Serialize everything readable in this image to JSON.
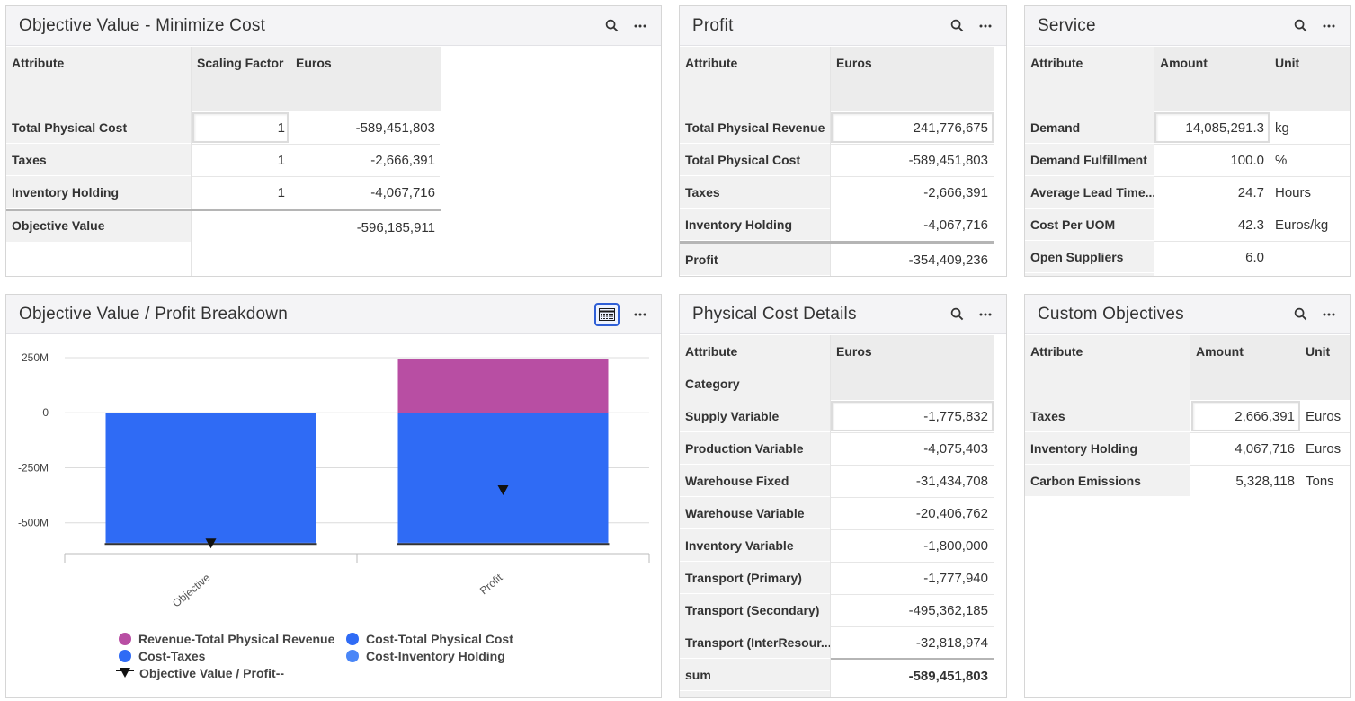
{
  "objective_panel": {
    "title": "Objective Value - Minimize Cost",
    "headers": {
      "attribute": "Attribute",
      "scaling": "Scaling Factor",
      "euros": "Euros"
    },
    "rows": [
      {
        "label": "Total Physical Cost",
        "scaling": "1",
        "euros": "-589,451,803"
      },
      {
        "label": "Taxes",
        "scaling": "1",
        "euros": "-2,666,391"
      },
      {
        "label": "Inventory Holding",
        "scaling": "1",
        "euros": "-4,067,716"
      }
    ],
    "total": {
      "label": "Objective Value",
      "euros": "-596,185,911"
    }
  },
  "profit_panel": {
    "title": "Profit",
    "headers": {
      "attribute": "Attribute",
      "euros": "Euros"
    },
    "rows": [
      {
        "label": "Total Physical Revenue",
        "euros": "241,776,675"
      },
      {
        "label": "Total Physical Cost",
        "euros": "-589,451,803"
      },
      {
        "label": "Taxes",
        "euros": "-2,666,391"
      },
      {
        "label": "Inventory Holding",
        "euros": "-4,067,716"
      }
    ],
    "total": {
      "label": "Profit",
      "euros": "-354,409,236"
    }
  },
  "service_panel": {
    "title": "Service",
    "headers": {
      "attribute": "Attribute",
      "amount": "Amount",
      "unit": "Unit"
    },
    "rows": [
      {
        "label": "Demand",
        "amount": "14,085,291.3",
        "unit": "kg"
      },
      {
        "label": "Demand Fulfillment",
        "amount": "100.0",
        "unit": "%"
      },
      {
        "label": "Average Lead Time...",
        "amount": "24.7",
        "unit": "Hours"
      },
      {
        "label": "Cost Per UOM",
        "amount": "42.3",
        "unit": "Euros/kg"
      },
      {
        "label": "Open Suppliers",
        "amount": "6.0",
        "unit": ""
      }
    ]
  },
  "breakdown_panel": {
    "title": "Objective Value / Profit Breakdown",
    "legend": [
      {
        "label": "Revenue-Total Physical Revenue",
        "color": "#b84ea3",
        "kind": "dot"
      },
      {
        "label": "Cost-Total Physical Cost",
        "color": "#2f6bf5",
        "kind": "dot"
      },
      {
        "label": "Cost-Taxes",
        "color": "#2f6bf5",
        "kind": "dot"
      },
      {
        "label": "Cost-Inventory Holding",
        "color": "#4a86f7",
        "kind": "dot"
      },
      {
        "label": "Objective Value / Profit--",
        "color": "#111111",
        "kind": "marker"
      }
    ]
  },
  "chart_data": {
    "type": "bar",
    "stacked": true,
    "categories": [
      "Objective",
      "Profit"
    ],
    "series": [
      {
        "name": "Revenue-Total Physical Revenue",
        "color": "#b84ea3",
        "values": [
          0,
          241776675
        ]
      },
      {
        "name": "Cost-Total Physical Cost",
        "color": "#2f6bf5",
        "values": [
          -589451803,
          -589451803
        ]
      },
      {
        "name": "Cost-Taxes",
        "color": "#2f6bf5",
        "values": [
          -2666391,
          -2666391
        ]
      },
      {
        "name": "Cost-Inventory Holding",
        "color": "#4a86f7",
        "values": [
          -4067716,
          -4067716
        ]
      }
    ],
    "markers": {
      "name": "Objective Value / Profit--",
      "values": [
        -596185911,
        -354409236
      ]
    },
    "yticks": [
      {
        "value": 250000000,
        "label": "250M"
      },
      {
        "value": 0,
        "label": "0"
      },
      {
        "value": -250000000,
        "label": "-250M"
      },
      {
        "value": -500000000,
        "label": "-500M"
      }
    ],
    "ylim": [
      -640000000,
      250000000
    ],
    "grid": true,
    "legend_position": "bottom"
  },
  "physical_cost_panel": {
    "title": "Physical Cost Details",
    "headers": {
      "attribute": "Attribute",
      "category": "Category",
      "euros": "Euros"
    },
    "rows": [
      {
        "label": "Supply Variable",
        "euros": "-1,775,832"
      },
      {
        "label": "Production Variable",
        "euros": "-4,075,403"
      },
      {
        "label": "Warehouse Fixed",
        "euros": "-31,434,708"
      },
      {
        "label": "Warehouse Variable",
        "euros": "-20,406,762"
      },
      {
        "label": "Inventory Variable",
        "euros": "-1,800,000"
      },
      {
        "label": "Transport (Primary)",
        "euros": "-1,777,940"
      },
      {
        "label": "Transport (Secondary)",
        "euros": "-495,362,185"
      },
      {
        "label": "Transport (InterResour...",
        "euros": "-32,818,974"
      }
    ],
    "total": {
      "label": "sum",
      "euros": "-589,451,803"
    }
  },
  "custom_panel": {
    "title": "Custom Objectives",
    "headers": {
      "attribute": "Attribute",
      "amount": "Amount",
      "unit": "Unit"
    },
    "rows": [
      {
        "label": "Taxes",
        "amount": "2,666,391",
        "unit": "Euros"
      },
      {
        "label": "Inventory Holding",
        "amount": "4,067,716",
        "unit": "Euros"
      },
      {
        "label": "Carbon Emissions",
        "amount": "5,328,118",
        "unit": "Tons"
      }
    ]
  }
}
